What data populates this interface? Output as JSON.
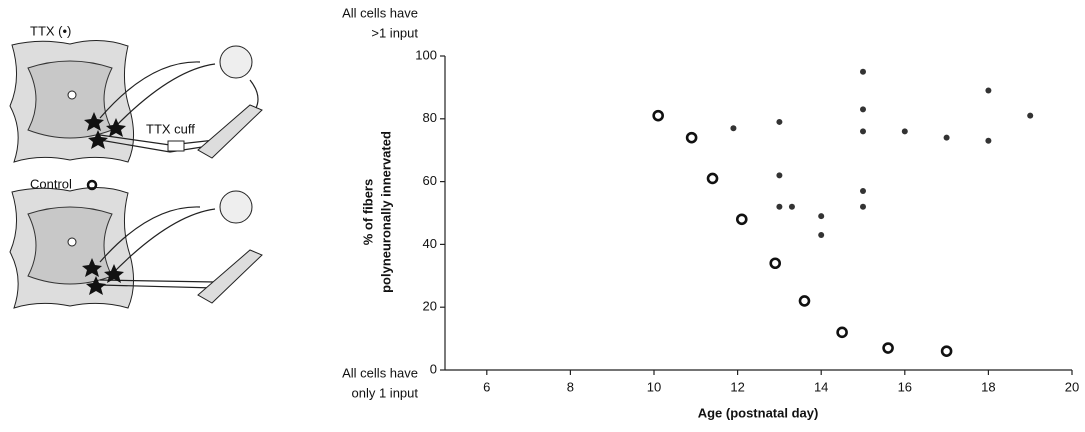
{
  "chart_data": {
    "type": "scatter",
    "ylabel": [
      "% of fibers",
      "polyneuronally innervated"
    ],
    "xlabel": "Age (postnatal day)",
    "annotations": {
      "top": [
        "All cells have",
        ">1 input"
      ],
      "bottom": [
        "All cells have",
        "only 1 input"
      ]
    },
    "diagram": {
      "cuff_label": "TTX cuff"
    },
    "xlim": [
      5,
      20
    ],
    "xticks": [
      6,
      8,
      10,
      12,
      14,
      16,
      18,
      20
    ],
    "ylim": [
      0,
      100
    ],
    "yticks": [
      0,
      20,
      40,
      60,
      80,
      100
    ],
    "series": [
      {
        "name": "TTX (•)",
        "color": "#333333",
        "marker": "filled",
        "x": [
          11.9,
          13,
          13,
          13,
          13.3,
          14,
          14,
          15,
          15,
          15,
          15,
          15,
          16,
          17,
          18,
          18,
          19
        ],
        "values": [
          77,
          79,
          62,
          52,
          52,
          49,
          43,
          95,
          83,
          76,
          57,
          52,
          76,
          74,
          89,
          73,
          81
        ]
      },
      {
        "name": "Control",
        "color": "#111111",
        "marker": "open",
        "x": [
          10.1,
          10.9,
          11.4,
          12.1,
          12.9,
          13.6,
          14.5,
          15.6,
          17
        ],
        "values": [
          81,
          74,
          61,
          48,
          34,
          22,
          12,
          7,
          6
        ]
      }
    ]
  }
}
